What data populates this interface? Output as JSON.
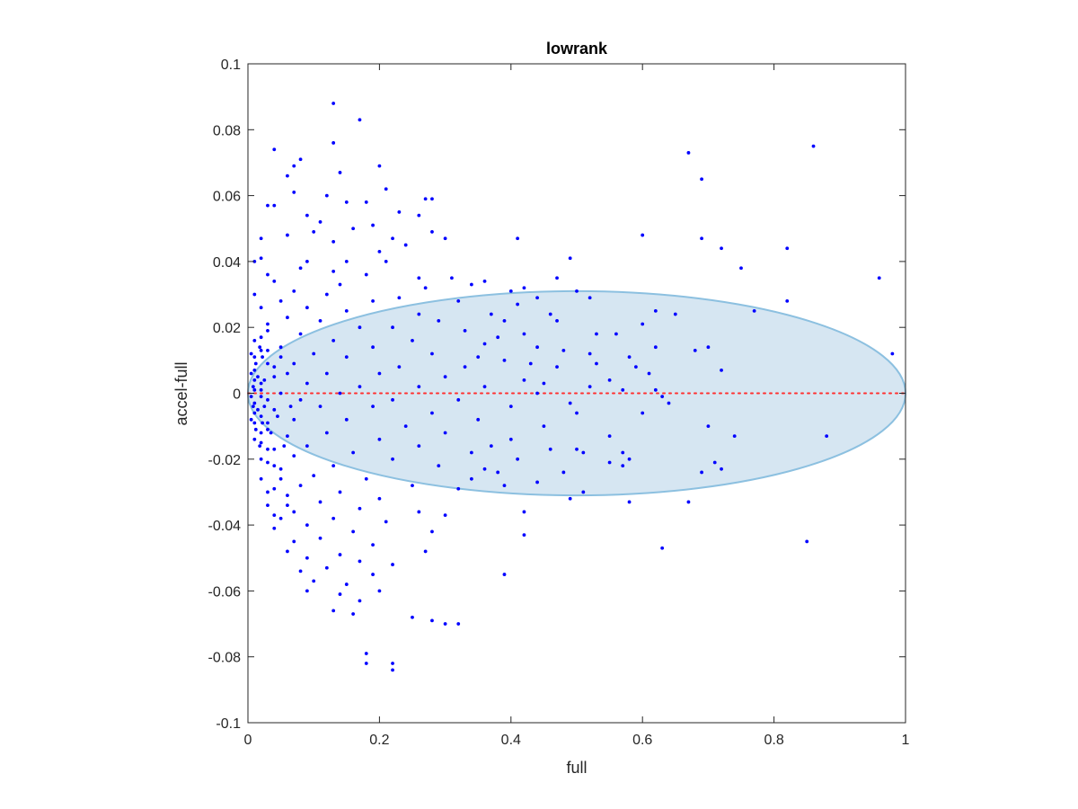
{
  "chart_data": {
    "type": "scatter",
    "title": "lowrank",
    "xlabel": "full",
    "ylabel": "accel-full",
    "xlim": [
      0,
      1
    ],
    "ylim": [
      -0.1,
      0.1
    ],
    "xticks": [
      0,
      0.2,
      0.4,
      0.6,
      0.8,
      1
    ],
    "xtick_labels": [
      "0",
      "0.2",
      "0.4",
      "0.6",
      "0.8",
      "1"
    ],
    "yticks": [
      -0.1,
      -0.08,
      -0.06,
      -0.04,
      -0.02,
      0,
      0.02,
      0.04,
      0.06,
      0.08,
      0.1
    ],
    "ytick_labels": [
      "-0.1",
      "-0.08",
      "-0.06",
      "-0.04",
      "-0.02",
      "0",
      "0.02",
      "0.04",
      "0.06",
      "0.08",
      "0.1"
    ],
    "grid": false,
    "reference_line": {
      "y": 0,
      "color": "#ff3030",
      "style": "dotted"
    },
    "ellipse": {
      "cx": 0.5,
      "cy": 0,
      "rx": 0.5,
      "ry": 0.031,
      "fill": "#d6e6f2",
      "stroke": "#8cc0e0"
    },
    "point_color": "#0000ff",
    "points": [
      [
        0.13,
        0.088
      ],
      [
        0.17,
        0.083
      ],
      [
        0.13,
        0.076
      ],
      [
        0.04,
        0.074
      ],
      [
        0.08,
        0.071
      ],
      [
        0.07,
        0.069
      ],
      [
        0.2,
        0.069
      ],
      [
        0.14,
        0.067
      ],
      [
        0.06,
        0.066
      ],
      [
        0.21,
        0.062
      ],
      [
        0.07,
        0.061
      ],
      [
        0.12,
        0.06
      ],
      [
        0.27,
        0.059
      ],
      [
        0.28,
        0.059
      ],
      [
        0.15,
        0.058
      ],
      [
        0.18,
        0.058
      ],
      [
        0.03,
        0.057
      ],
      [
        0.04,
        0.057
      ],
      [
        0.23,
        0.055
      ],
      [
        0.09,
        0.054
      ],
      [
        0.26,
        0.054
      ],
      [
        0.11,
        0.052
      ],
      [
        0.19,
        0.051
      ],
      [
        0.16,
        0.05
      ],
      [
        0.28,
        0.049
      ],
      [
        0.1,
        0.049
      ],
      [
        0.06,
        0.048
      ],
      [
        0.02,
        0.047
      ],
      [
        0.22,
        0.047
      ],
      [
        0.3,
        0.047
      ],
      [
        0.13,
        0.046
      ],
      [
        0.41,
        0.047
      ],
      [
        0.24,
        0.045
      ],
      [
        0.2,
        0.043
      ],
      [
        0.02,
        0.041
      ],
      [
        0.09,
        0.04
      ],
      [
        0.15,
        0.04
      ],
      [
        0.21,
        0.04
      ],
      [
        0.08,
        0.038
      ],
      [
        0.01,
        0.04
      ],
      [
        0.13,
        0.037
      ],
      [
        0.18,
        0.036
      ],
      [
        0.26,
        0.035
      ],
      [
        0.31,
        0.035
      ],
      [
        0.04,
        0.034
      ],
      [
        0.36,
        0.034
      ],
      [
        0.14,
        0.033
      ],
      [
        0.27,
        0.032
      ],
      [
        0.07,
        0.031
      ],
      [
        0.34,
        0.033
      ],
      [
        0.42,
        0.032
      ],
      [
        0.12,
        0.03
      ],
      [
        0.23,
        0.029
      ],
      [
        0.19,
        0.028
      ],
      [
        0.05,
        0.028
      ],
      [
        0.32,
        0.028
      ],
      [
        0.4,
        0.031
      ],
      [
        0.44,
        0.029
      ],
      [
        0.09,
        0.026
      ],
      [
        0.02,
        0.026
      ],
      [
        0.15,
        0.025
      ],
      [
        0.26,
        0.024
      ],
      [
        0.37,
        0.024
      ],
      [
        0.06,
        0.023
      ],
      [
        0.11,
        0.022
      ],
      [
        0.29,
        0.022
      ],
      [
        0.39,
        0.022
      ],
      [
        0.47,
        0.022
      ],
      [
        0.03,
        0.021
      ],
      [
        0.17,
        0.02
      ],
      [
        0.22,
        0.02
      ],
      [
        0.33,
        0.019
      ],
      [
        0.08,
        0.018
      ],
      [
        0.42,
        0.018
      ],
      [
        0.02,
        0.017
      ],
      [
        0.13,
        0.016
      ],
      [
        0.25,
        0.016
      ],
      [
        0.36,
        0.015
      ],
      [
        0.05,
        0.014
      ],
      [
        0.19,
        0.014
      ],
      [
        0.44,
        0.014
      ],
      [
        0.02,
        0.013
      ],
      [
        0.1,
        0.012
      ],
      [
        0.28,
        0.012
      ],
      [
        0.52,
        0.012
      ],
      [
        0.01,
        0.011
      ],
      [
        0.15,
        0.011
      ],
      [
        0.39,
        0.01
      ],
      [
        0.07,
        0.009
      ],
      [
        0.23,
        0.008
      ],
      [
        0.33,
        0.008
      ],
      [
        0.47,
        0.008
      ],
      [
        0.01,
        0.007
      ],
      [
        0.12,
        0.006
      ],
      [
        0.2,
        0.006
      ],
      [
        0.04,
        0.005
      ],
      [
        0.3,
        0.005
      ],
      [
        0.42,
        0.004
      ],
      [
        0.55,
        0.004
      ],
      [
        0.02,
        0.003
      ],
      [
        0.09,
        0.003
      ],
      [
        0.17,
        0.002
      ],
      [
        0.26,
        0.002
      ],
      [
        0.36,
        0.002
      ],
      [
        0.01,
        0.001
      ],
      [
        0.05,
        0.0
      ],
      [
        0.14,
        0.0
      ],
      [
        0.44,
        0.0
      ],
      [
        0.62,
        0.001
      ],
      [
        0.02,
        -0.001
      ],
      [
        0.08,
        -0.002
      ],
      [
        0.22,
        -0.002
      ],
      [
        0.32,
        -0.002
      ],
      [
        0.01,
        -0.003
      ],
      [
        0.11,
        -0.004
      ],
      [
        0.19,
        -0.004
      ],
      [
        0.4,
        -0.004
      ],
      [
        0.04,
        -0.005
      ],
      [
        0.28,
        -0.006
      ],
      [
        0.5,
        -0.006
      ],
      [
        0.02,
        -0.007
      ],
      [
        0.07,
        -0.008
      ],
      [
        0.15,
        -0.008
      ],
      [
        0.35,
        -0.008
      ],
      [
        0.01,
        -0.009
      ],
      [
        0.24,
        -0.01
      ],
      [
        0.45,
        -0.01
      ],
      [
        0.03,
        -0.011
      ],
      [
        0.12,
        -0.012
      ],
      [
        0.3,
        -0.012
      ],
      [
        0.06,
        -0.013
      ],
      [
        0.2,
        -0.014
      ],
      [
        0.4,
        -0.014
      ],
      [
        0.02,
        -0.015
      ],
      [
        0.09,
        -0.016
      ],
      [
        0.26,
        -0.016
      ],
      [
        0.04,
        -0.017
      ],
      [
        0.16,
        -0.018
      ],
      [
        0.34,
        -0.018
      ],
      [
        0.07,
        -0.019
      ],
      [
        0.22,
        -0.02
      ],
      [
        0.03,
        -0.021
      ],
      [
        0.13,
        -0.022
      ],
      [
        0.29,
        -0.022
      ],
      [
        0.05,
        -0.023
      ],
      [
        0.38,
        -0.024
      ],
      [
        0.1,
        -0.025
      ],
      [
        0.18,
        -0.026
      ],
      [
        0.02,
        -0.026
      ],
      [
        0.08,
        -0.028
      ],
      [
        0.25,
        -0.028
      ],
      [
        0.04,
        -0.029
      ],
      [
        0.14,
        -0.03
      ],
      [
        0.32,
        -0.029
      ],
      [
        0.06,
        -0.031
      ],
      [
        0.2,
        -0.032
      ],
      [
        0.11,
        -0.033
      ],
      [
        0.03,
        -0.034
      ],
      [
        0.17,
        -0.035
      ],
      [
        0.07,
        -0.036
      ],
      [
        0.26,
        -0.036
      ],
      [
        0.05,
        -0.038
      ],
      [
        0.13,
        -0.038
      ],
      [
        0.21,
        -0.039
      ],
      [
        0.09,
        -0.04
      ],
      [
        0.04,
        -0.041
      ],
      [
        0.16,
        -0.042
      ],
      [
        0.28,
        -0.042
      ],
      [
        0.11,
        -0.044
      ],
      [
        0.07,
        -0.045
      ],
      [
        0.19,
        -0.046
      ],
      [
        0.06,
        -0.048
      ],
      [
        0.14,
        -0.049
      ],
      [
        0.09,
        -0.05
      ],
      [
        0.17,
        -0.051
      ],
      [
        0.22,
        -0.052
      ],
      [
        0.12,
        -0.053
      ],
      [
        0.08,
        -0.054
      ],
      [
        0.19,
        -0.055
      ],
      [
        0.1,
        -0.057
      ],
      [
        0.15,
        -0.058
      ],
      [
        0.09,
        -0.06
      ],
      [
        0.2,
        -0.06
      ],
      [
        0.14,
        -0.061
      ],
      [
        0.17,
        -0.063
      ],
      [
        0.13,
        -0.066
      ],
      [
        0.16,
        -0.067
      ],
      [
        0.25,
        -0.068
      ],
      [
        0.28,
        -0.069
      ],
      [
        0.3,
        -0.07
      ],
      [
        0.32,
        -0.07
      ],
      [
        0.18,
        -0.079
      ],
      [
        0.18,
        -0.082
      ],
      [
        0.22,
        -0.082
      ],
      [
        0.22,
        -0.084
      ],
      [
        0.03,
        0.036
      ],
      [
        0.01,
        0.03
      ],
      [
        0.03,
        0.019
      ],
      [
        0.01,
        0.016
      ],
      [
        0.03,
        0.009
      ],
      [
        0.01,
        0.004
      ],
      [
        0.02,
        0.001
      ],
      [
        0.03,
        -0.002
      ],
      [
        0.01,
        -0.006
      ],
      [
        0.03,
        -0.009
      ],
      [
        0.02,
        -0.012
      ],
      [
        0.01,
        -0.014
      ],
      [
        0.03,
        -0.017
      ],
      [
        0.04,
        -0.022
      ],
      [
        0.02,
        -0.02
      ],
      [
        0.05,
        -0.026
      ],
      [
        0.03,
        -0.03
      ],
      [
        0.06,
        -0.034
      ],
      [
        0.04,
        -0.037
      ],
      [
        0.005,
        0.012
      ],
      [
        0.005,
        -0.008
      ],
      [
        0.005,
        0.006
      ],
      [
        0.005,
        -0.001
      ],
      [
        0.008,
        -0.004
      ],
      [
        0.008,
        0.002
      ],
      [
        0.012,
        0.009
      ],
      [
        0.012,
        -0.011
      ],
      [
        0.015,
        0.005
      ],
      [
        0.015,
        -0.005
      ],
      [
        0.018,
        0.014
      ],
      [
        0.018,
        -0.016
      ],
      [
        0.022,
        0.011
      ],
      [
        0.022,
        -0.009
      ],
      [
        0.025,
        0.004
      ],
      [
        0.025,
        -0.004
      ],
      [
        0.03,
        0.013
      ],
      [
        0.035,
        -0.012
      ],
      [
        0.04,
        0.008
      ],
      [
        0.045,
        -0.007
      ],
      [
        0.05,
        0.011
      ],
      [
        0.055,
        -0.016
      ],
      [
        0.06,
        0.006
      ],
      [
        0.065,
        -0.004
      ],
      [
        0.48,
        0.013
      ],
      [
        0.5,
        -0.017
      ],
      [
        0.53,
        0.009
      ],
      [
        0.55,
        -0.013
      ],
      [
        0.58,
        0.011
      ],
      [
        0.6,
        -0.006
      ],
      [
        0.46,
        0.024
      ],
      [
        0.48,
        -0.024
      ],
      [
        0.52,
        0.029
      ],
      [
        0.56,
        0.018
      ],
      [
        0.58,
        -0.02
      ],
      [
        0.61,
        0.006
      ],
      [
        0.63,
        -0.001
      ],
      [
        0.43,
        0.009
      ],
      [
        0.37,
        -0.016
      ],
      [
        0.35,
        0.011
      ],
      [
        0.38,
        0.017
      ],
      [
        0.41,
        -0.02
      ],
      [
        0.45,
        0.003
      ],
      [
        0.49,
        -0.003
      ],
      [
        0.52,
        0.002
      ],
      [
        0.57,
        0.001
      ],
      [
        0.59,
        0.008
      ],
      [
        0.6,
        0.021
      ],
      [
        0.62,
        0.014
      ],
      [
        0.64,
        -0.003
      ],
      [
        0.41,
        0.027
      ],
      [
        0.44,
        -0.027
      ],
      [
        0.53,
        0.018
      ],
      [
        0.55,
        -0.021
      ],
      [
        0.57,
        -0.018
      ],
      [
        0.51,
        -0.018
      ],
      [
        0.67,
        0.073
      ],
      [
        0.69,
        0.065
      ],
      [
        0.86,
        0.075
      ],
      [
        0.6,
        0.048
      ],
      [
        0.69,
        0.047
      ],
      [
        0.72,
        0.044
      ],
      [
        0.82,
        0.044
      ],
      [
        0.75,
        0.038
      ],
      [
        0.96,
        0.035
      ],
      [
        0.82,
        0.028
      ],
      [
        0.62,
        0.025
      ],
      [
        0.65,
        0.024
      ],
      [
        0.77,
        0.025
      ],
      [
        0.68,
        0.013
      ],
      [
        0.7,
        0.014
      ],
      [
        0.72,
        0.007
      ],
      [
        0.98,
        0.012
      ],
      [
        0.7,
        -0.01
      ],
      [
        0.74,
        -0.013
      ],
      [
        0.88,
        -0.013
      ],
      [
        0.71,
        -0.021
      ],
      [
        0.72,
        -0.023
      ],
      [
        0.69,
        -0.024
      ],
      [
        0.67,
        -0.033
      ],
      [
        0.63,
        -0.047
      ],
      [
        0.85,
        -0.045
      ],
      [
        0.39,
        -0.055
      ],
      [
        0.42,
        -0.043
      ],
      [
        0.42,
        -0.036
      ],
      [
        0.51,
        -0.03
      ],
      [
        0.49,
        -0.032
      ],
      [
        0.58,
        -0.033
      ],
      [
        0.57,
        -0.022
      ],
      [
        0.39,
        -0.028
      ],
      [
        0.34,
        -0.026
      ],
      [
        0.27,
        -0.048
      ],
      [
        0.3,
        -0.037
      ],
      [
        0.36,
        -0.023
      ],
      [
        0.46,
        -0.017
      ],
      [
        0.49,
        0.041
      ],
      [
        0.47,
        0.035
      ],
      [
        0.5,
        0.031
      ]
    ]
  }
}
